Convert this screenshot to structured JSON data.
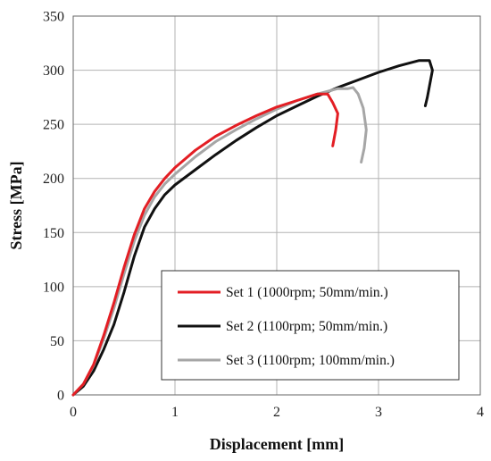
{
  "chart_data": {
    "type": "line",
    "title": "",
    "xlabel": "Displacement [mm]",
    "ylabel": "Stress [MPa]",
    "xlim": [
      0,
      4
    ],
    "ylim": [
      0,
      350
    ],
    "xticks": [
      "0",
      "1",
      "2",
      "3",
      "4"
    ],
    "yticks": [
      "0",
      "50",
      "100",
      "150",
      "200",
      "250",
      "300",
      "350"
    ],
    "grid": true,
    "legend_position": "bottom-right",
    "series": [
      {
        "name": "Set 1 (1000rpm; 50mm/min.)",
        "color": "#e31e24",
        "x": [
          0,
          0.1,
          0.2,
          0.3,
          0.4,
          0.5,
          0.6,
          0.7,
          0.8,
          0.9,
          1.0,
          1.2,
          1.4,
          1.6,
          1.8,
          2.0,
          2.2,
          2.4,
          2.5,
          2.55,
          2.6,
          2.58,
          2.55
        ],
        "y": [
          0,
          10,
          28,
          55,
          85,
          118,
          148,
          172,
          188,
          200,
          210,
          226,
          239,
          249,
          258,
          266,
          272,
          278,
          278,
          270,
          260,
          245,
          230
        ]
      },
      {
        "name": "Set 2 (1100rpm; 50mm/min.)",
        "color": "#111111",
        "x": [
          0,
          0.1,
          0.2,
          0.3,
          0.4,
          0.5,
          0.6,
          0.7,
          0.8,
          0.9,
          1.0,
          1.2,
          1.4,
          1.6,
          1.8,
          2.0,
          2.2,
          2.4,
          2.6,
          2.8,
          3.0,
          3.2,
          3.4,
          3.5,
          3.53,
          3.5,
          3.48,
          3.46
        ],
        "y": [
          0,
          8,
          22,
          42,
          65,
          95,
          128,
          155,
          172,
          185,
          194,
          208,
          222,
          235,
          247,
          258,
          267,
          276,
          284,
          291,
          298,
          304,
          309,
          309,
          300,
          285,
          275,
          267
        ]
      },
      {
        "name": "Set 3 (1100rpm; 100mm/min.)",
        "color": "#a6a6a6",
        "x": [
          0,
          0.1,
          0.2,
          0.3,
          0.4,
          0.5,
          0.6,
          0.7,
          0.8,
          0.9,
          1.0,
          1.2,
          1.4,
          1.6,
          1.8,
          2.0,
          2.2,
          2.4,
          2.6,
          2.7,
          2.75,
          2.8,
          2.85,
          2.88,
          2.86,
          2.83
        ],
        "y": [
          0,
          10,
          27,
          52,
          80,
          112,
          142,
          166,
          183,
          195,
          204,
          220,
          234,
          245,
          255,
          264,
          272,
          278,
          283,
          283,
          284,
          278,
          265,
          245,
          228,
          215
        ]
      }
    ]
  }
}
